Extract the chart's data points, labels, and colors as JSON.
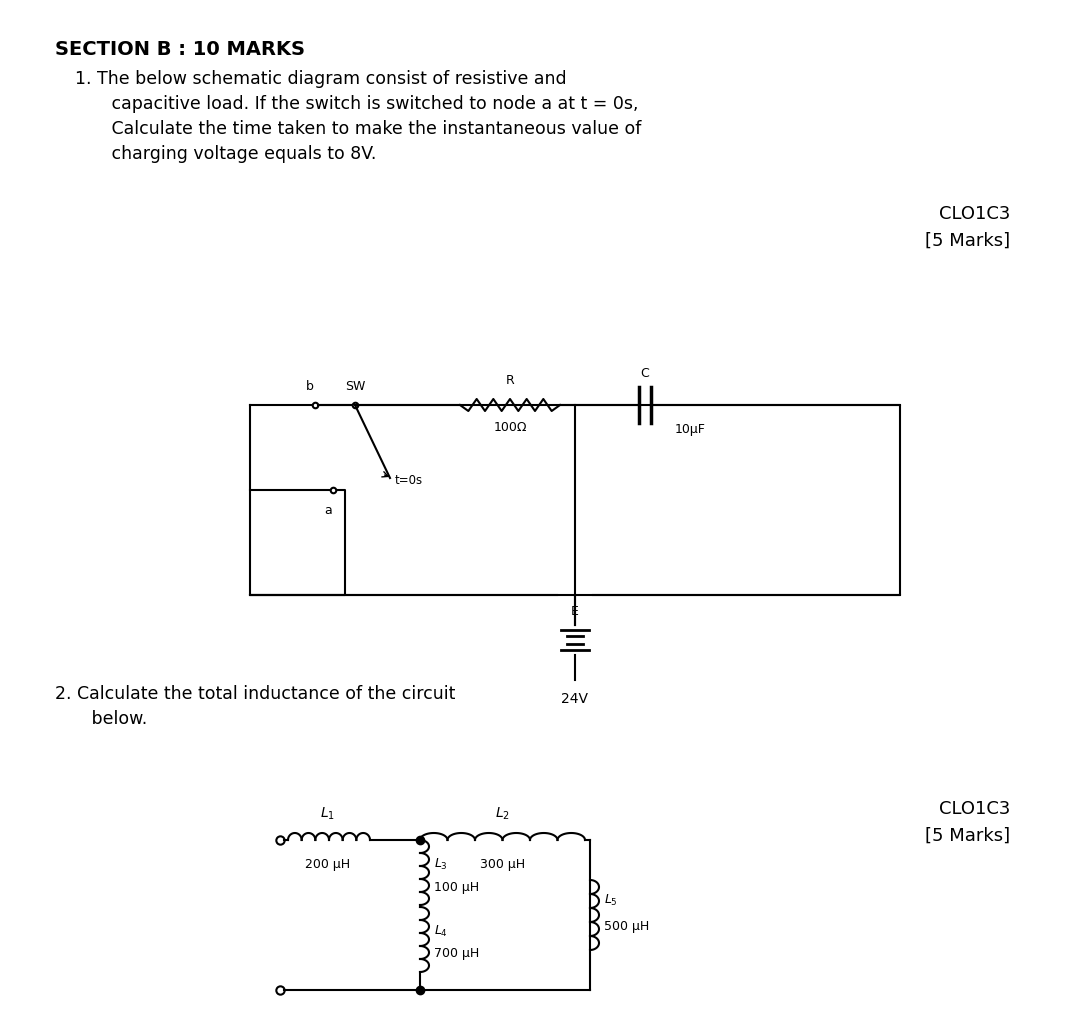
{
  "bg_color": "#ffffff",
  "section_title": "SECTION B : 10 MARKS",
  "q1_line1": "1. The below schematic diagram consist of resistive and",
  "q1_line2": "   capacitive load. If the switch is switched to node a at t = 0s,",
  "q1_line3": "   Calculate the time taken to make the instantaneous value of",
  "q1_line4": "   charging voltage equals to 8V.",
  "q1_clo": "CLO1C3",
  "q1_marks": "[5 Marks]",
  "q2_line1": "2. Calculate the total inductance of the circuit",
  "q2_line2": "   below.",
  "q2_clo": "CLO1C3",
  "q2_marks": "[5 Marks]"
}
